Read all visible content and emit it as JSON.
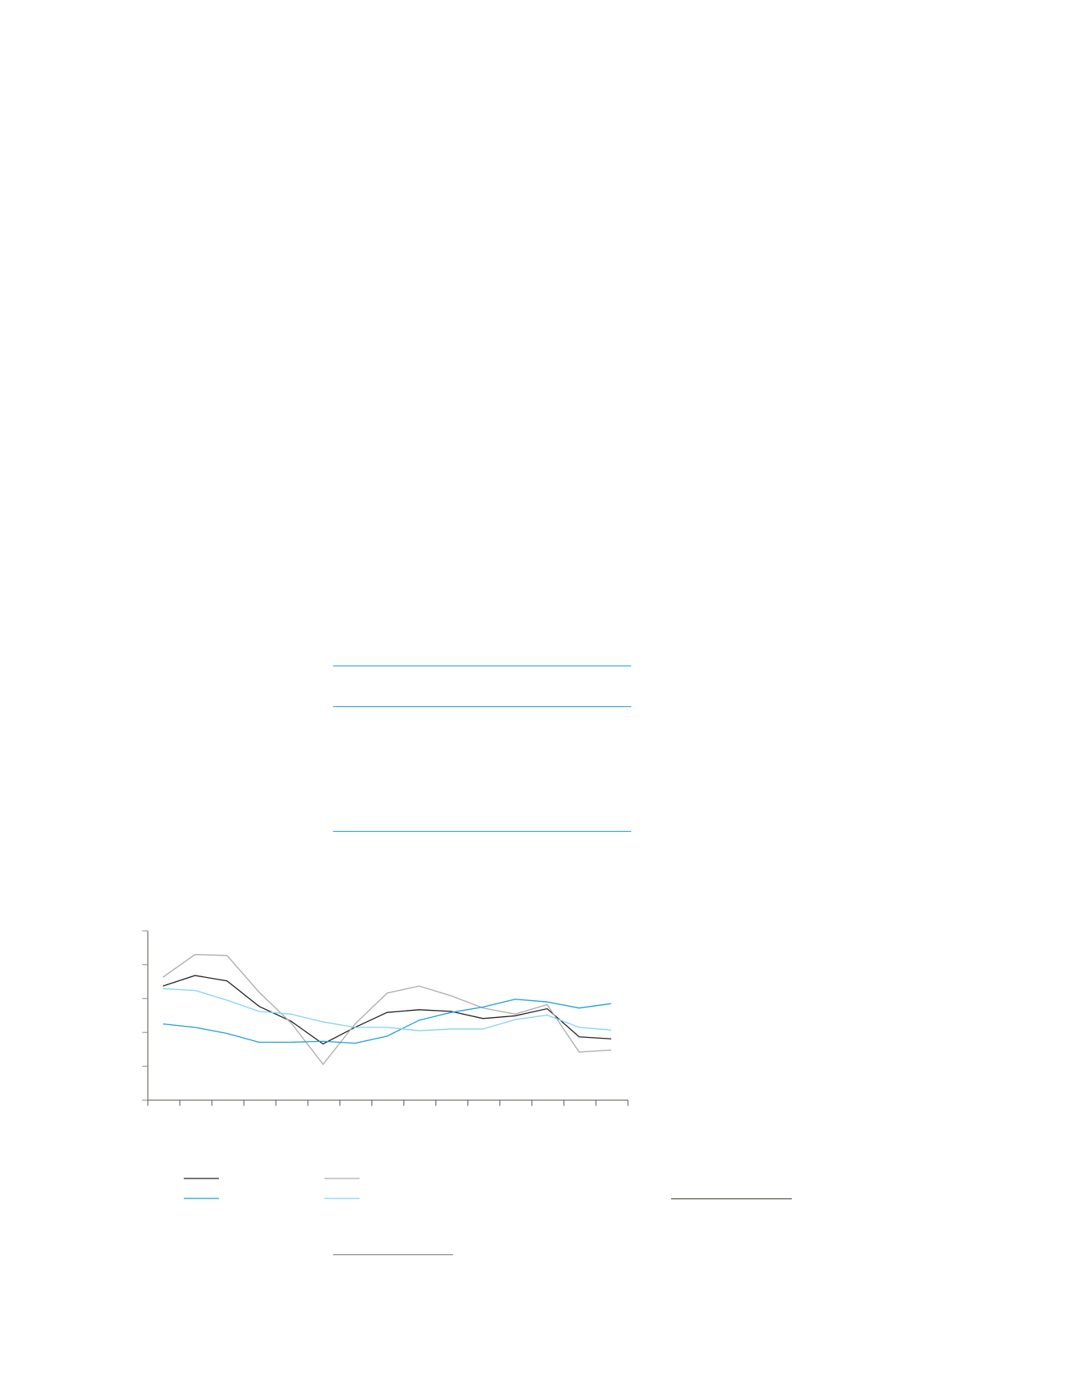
{
  "colors": {
    "rule_blue": "#1a9fd6",
    "rule_dark": "#3a3a2a",
    "rule_gray": "#8a8a8a",
    "axis": "#8e8984"
  },
  "chart_data": {
    "type": "line",
    "title": "",
    "xlabel": "",
    "ylabel": "",
    "x": [
      1,
      2,
      3,
      4,
      5,
      6,
      7,
      8,
      9,
      10,
      11,
      12,
      13,
      14,
      15
    ],
    "x_tick_count": 16,
    "ylim": [
      0,
      5
    ],
    "y_tick_count": 6,
    "grid": false,
    "legend": "bottom-left",
    "series": [
      {
        "color": "#222222",
        "values": [
          3.37,
          3.68,
          3.52,
          2.77,
          2.33,
          1.66,
          2.15,
          2.59,
          2.67,
          2.62,
          2.41,
          2.49,
          2.7,
          1.87,
          1.81
        ]
      },
      {
        "color": "#aaaaaa",
        "values": [
          3.63,
          4.3,
          4.27,
          3.19,
          2.28,
          1.06,
          2.25,
          3.16,
          3.37,
          3.08,
          2.72,
          2.54,
          2.82,
          1.42,
          1.48
        ]
      },
      {
        "color": "#1a9fd6",
        "values": [
          2.25,
          2.15,
          1.97,
          1.71,
          1.71,
          1.74,
          1.68,
          1.89,
          2.36,
          2.59,
          2.75,
          2.98,
          2.9,
          2.72,
          2.85
        ]
      },
      {
        "color": "#7fd3f2",
        "values": [
          3.29,
          3.24,
          2.95,
          2.62,
          2.54,
          2.31,
          2.15,
          2.15,
          2.05,
          2.1,
          2.1,
          2.38,
          2.51,
          2.15,
          2.07
        ]
      }
    ]
  }
}
